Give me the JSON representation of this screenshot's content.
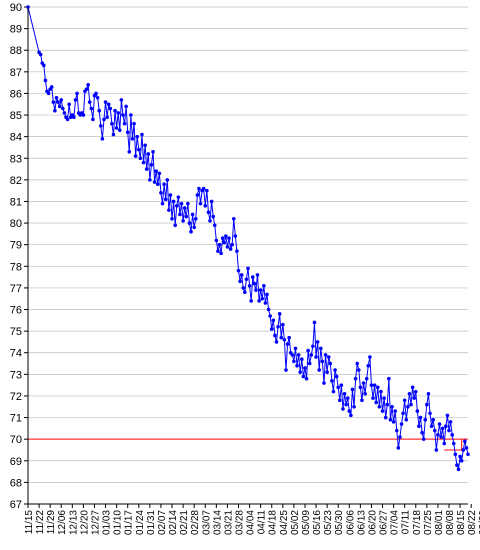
{
  "chart_data": {
    "type": "line",
    "title": "",
    "xlabel": "",
    "ylabel": "",
    "ylim": [
      67,
      90
    ],
    "yticks": [
      67,
      68,
      69,
      70,
      71,
      72,
      73,
      74,
      75,
      76,
      77,
      78,
      79,
      80,
      81,
      82,
      83,
      84,
      85,
      86,
      87,
      88,
      89,
      90
    ],
    "x_start": "11/15",
    "x_end": "09/29",
    "x_tick_labels": [
      "11/15",
      "11/22",
      "11/29",
      "12/06",
      "12/13",
      "12/20",
      "12/27",
      "01/03",
      "01/10",
      "01/17",
      "01/24",
      "01/31",
      "02/07",
      "02/14",
      "02/21",
      "02/28",
      "03/07",
      "03/14",
      "03/21",
      "03/28",
      "04/04",
      "04/11",
      "04/18",
      "04/25",
      "05/02",
      "05/09",
      "05/16",
      "05/23",
      "05/30",
      "06/06",
      "06/13",
      "06/20",
      "06/27",
      "07/04",
      "07/11",
      "07/18",
      "07/25",
      "08/01",
      "08/08",
      "08/15",
      "08/22",
      "08/29",
      "09/05",
      "09/12",
      "09/19",
      "09/26"
    ],
    "grid": true,
    "legend": "none",
    "series_color": "#0000ff",
    "goal_color": "#ff0000",
    "series": [
      {
        "values": [
          [
            0,
            90.0
          ],
          [
            7,
            87.9
          ],
          [
            8,
            87.8
          ],
          [
            9,
            87.4
          ],
          [
            10,
            87.3
          ],
          [
            11,
            86.6
          ],
          [
            12,
            86.1
          ],
          [
            13,
            86.0
          ],
          [
            14,
            86.2
          ],
          [
            15,
            86.3
          ],
          [
            16,
            85.6
          ],
          [
            17,
            85.2
          ],
          [
            18,
            85.8
          ],
          [
            19,
            85.6
          ],
          [
            20,
            85.4
          ],
          [
            21,
            85.7
          ],
          [
            22,
            85.3
          ],
          [
            23,
            85.1
          ],
          [
            24,
            84.9
          ],
          [
            25,
            84.8
          ],
          [
            26,
            85.5
          ],
          [
            27,
            84.9
          ],
          [
            28,
            85.0
          ],
          [
            29,
            84.9
          ],
          [
            30,
            85.7
          ],
          [
            31,
            86.0
          ],
          [
            32,
            85.1
          ],
          [
            33,
            85.0
          ],
          [
            34,
            85.1
          ],
          [
            35,
            85.0
          ],
          [
            36,
            86.1
          ],
          [
            37,
            86.2
          ],
          [
            38,
            86.4
          ],
          [
            39,
            85.6
          ],
          [
            40,
            85.3
          ],
          [
            41,
            84.8
          ],
          [
            42,
            85.9
          ],
          [
            43,
            86.0
          ],
          [
            44,
            85.8
          ],
          [
            45,
            85.2
          ],
          [
            46,
            84.5
          ],
          [
            47,
            83.9
          ],
          [
            48,
            84.8
          ],
          [
            49,
            85.6
          ],
          [
            50,
            84.9
          ],
          [
            51,
            85.5
          ],
          [
            52,
            85.3
          ],
          [
            53,
            84.6
          ],
          [
            54,
            84.1
          ],
          [
            55,
            85.2
          ],
          [
            56,
            84.4
          ],
          [
            57,
            85.1
          ],
          [
            58,
            84.3
          ],
          [
            59,
            85.7
          ],
          [
            60,
            85.0
          ],
          [
            61,
            84.6
          ],
          [
            62,
            85.4
          ],
          [
            63,
            84.2
          ],
          [
            64,
            83.3
          ],
          [
            65,
            85.0
          ],
          [
            66,
            83.9
          ],
          [
            67,
            84.6
          ],
          [
            68,
            83.1
          ],
          [
            69,
            84.0
          ],
          [
            70,
            83.4
          ],
          [
            71,
            83.0
          ],
          [
            72,
            84.1
          ],
          [
            73,
            82.8
          ],
          [
            74,
            83.6
          ],
          [
            75,
            82.5
          ],
          [
            76,
            83.2
          ],
          [
            77,
            82.0
          ],
          [
            78,
            82.7
          ],
          [
            79,
            83.3
          ],
          [
            80,
            81.9
          ],
          [
            81,
            82.4
          ],
          [
            82,
            81.8
          ],
          [
            83,
            82.3
          ],
          [
            84,
            81.4
          ],
          [
            85,
            80.9
          ],
          [
            86,
            81.8
          ],
          [
            87,
            81.1
          ],
          [
            88,
            82.0
          ],
          [
            89,
            80.6
          ],
          [
            90,
            81.3
          ],
          [
            91,
            80.2
          ],
          [
            92,
            81.0
          ],
          [
            93,
            79.9
          ],
          [
            94,
            80.8
          ],
          [
            95,
            81.2
          ],
          [
            96,
            80.4
          ],
          [
            97,
            80.9
          ],
          [
            98,
            80.1
          ],
          [
            99,
            80.7
          ],
          [
            100,
            80.3
          ],
          [
            101,
            80.9
          ],
          [
            102,
            80.0
          ],
          [
            103,
            79.6
          ],
          [
            104,
            80.4
          ],
          [
            105,
            79.8
          ],
          [
            106,
            80.2
          ],
          [
            107,
            81.3
          ],
          [
            108,
            81.6
          ],
          [
            109,
            80.9
          ],
          [
            110,
            81.5
          ],
          [
            111,
            81.6
          ],
          [
            112,
            80.8
          ],
          [
            113,
            81.5
          ],
          [
            114,
            80.5
          ],
          [
            115,
            80.1
          ],
          [
            116,
            81.0
          ],
          [
            117,
            80.3
          ],
          [
            118,
            79.9
          ],
          [
            119,
            79.2
          ],
          [
            120,
            78.7
          ],
          [
            121,
            79.0
          ],
          [
            122,
            78.6
          ],
          [
            123,
            79.3
          ],
          [
            124,
            79.1
          ],
          [
            125,
            79.4
          ],
          [
            126,
            78.9
          ],
          [
            127,
            79.3
          ],
          [
            128,
            78.8
          ],
          [
            129,
            79.0
          ],
          [
            130,
            80.2
          ],
          [
            131,
            79.4
          ],
          [
            132,
            78.7
          ],
          [
            133,
            77.8
          ],
          [
            134,
            77.3
          ],
          [
            135,
            77.6
          ],
          [
            136,
            77.0
          ],
          [
            137,
            76.8
          ],
          [
            138,
            77.4
          ],
          [
            139,
            77.9
          ],
          [
            140,
            77.1
          ],
          [
            141,
            76.4
          ],
          [
            142,
            77.5
          ],
          [
            143,
            77.2
          ],
          [
            144,
            76.9
          ],
          [
            145,
            77.6
          ],
          [
            146,
            76.4
          ],
          [
            147,
            76.9
          ],
          [
            148,
            76.5
          ],
          [
            149,
            77.1
          ],
          [
            150,
            76.3
          ],
          [
            151,
            76.7
          ],
          [
            152,
            76.0
          ],
          [
            153,
            75.7
          ],
          [
            154,
            75.1
          ],
          [
            155,
            75.5
          ],
          [
            156,
            74.8
          ],
          [
            157,
            74.5
          ],
          [
            158,
            75.2
          ],
          [
            159,
            75.8
          ],
          [
            160,
            74.7
          ],
          [
            161,
            75.3
          ],
          [
            162,
            74.6
          ],
          [
            163,
            73.2
          ],
          [
            164,
            74.4
          ],
          [
            165,
            74.7
          ],
          [
            166,
            74.0
          ],
          [
            167,
            73.9
          ],
          [
            168,
            73.6
          ],
          [
            169,
            74.2
          ],
          [
            170,
            73.4
          ],
          [
            171,
            73.9
          ],
          [
            172,
            73.1
          ],
          [
            173,
            73.7
          ],
          [
            174,
            72.9
          ],
          [
            175,
            73.3
          ],
          [
            176,
            72.8
          ],
          [
            177,
            74.1
          ],
          [
            178,
            73.5
          ],
          [
            179,
            73.9
          ],
          [
            180,
            74.3
          ],
          [
            181,
            75.4
          ],
          [
            182,
            73.8
          ],
          [
            183,
            74.5
          ],
          [
            184,
            73.2
          ],
          [
            185,
            74.2
          ],
          [
            186,
            73.6
          ],
          [
            187,
            72.6
          ],
          [
            188,
            73.9
          ],
          [
            189,
            73.1
          ],
          [
            190,
            73.8
          ],
          [
            191,
            73.5
          ],
          [
            192,
            72.7
          ],
          [
            193,
            72.2
          ],
          [
            194,
            73.2
          ],
          [
            195,
            72.9
          ],
          [
            196,
            72.4
          ],
          [
            197,
            71.8
          ],
          [
            198,
            72.5
          ],
          [
            199,
            71.4
          ],
          [
            200,
            72.1
          ],
          [
            201,
            71.6
          ],
          [
            202,
            71.9
          ],
          [
            203,
            71.3
          ],
          [
            204,
            71.1
          ],
          [
            205,
            72.3
          ],
          [
            206,
            71.5
          ],
          [
            207,
            72.8
          ],
          [
            208,
            73.5
          ],
          [
            209,
            73.2
          ],
          [
            210,
            72.4
          ],
          [
            211,
            71.8
          ],
          [
            212,
            72.6
          ],
          [
            213,
            72.1
          ],
          [
            214,
            72.8
          ],
          [
            215,
            73.4
          ],
          [
            216,
            73.8
          ],
          [
            217,
            72.5
          ],
          [
            218,
            71.9
          ],
          [
            219,
            72.5
          ],
          [
            220,
            71.7
          ],
          [
            221,
            72.4
          ],
          [
            222,
            71.5
          ],
          [
            223,
            72.2
          ],
          [
            224,
            71.3
          ],
          [
            225,
            71.9
          ],
          [
            226,
            71.0
          ],
          [
            227,
            71.6
          ],
          [
            228,
            72.8
          ],
          [
            229,
            70.9
          ],
          [
            230,
            71.5
          ],
          [
            231,
            70.8
          ],
          [
            232,
            71.3
          ],
          [
            233,
            70.4
          ],
          [
            234,
            69.6
          ],
          [
            235,
            70.1
          ],
          [
            236,
            70.7
          ],
          [
            237,
            71.2
          ],
          [
            238,
            71.8
          ],
          [
            239,
            70.9
          ],
          [
            240,
            71.5
          ],
          [
            241,
            72.1
          ],
          [
            242,
            71.6
          ],
          [
            243,
            72.4
          ],
          [
            244,
            71.9
          ],
          [
            245,
            72.2
          ],
          [
            246,
            71.3
          ],
          [
            247,
            70.6
          ],
          [
            248,
            71.0
          ],
          [
            249,
            70.3
          ],
          [
            250,
            70.0
          ],
          [
            251,
            70.9
          ],
          [
            252,
            71.6
          ],
          [
            253,
            72.1
          ],
          [
            254,
            71.2
          ],
          [
            255,
            70.6
          ],
          [
            256,
            70.9
          ],
          [
            257,
            70.4
          ],
          [
            258,
            69.5
          ],
          [
            259,
            70.2
          ],
          [
            260,
            70.7
          ],
          [
            261,
            70.1
          ],
          [
            262,
            70.5
          ],
          [
            263,
            69.8
          ],
          [
            264,
            70.6
          ],
          [
            265,
            71.1
          ],
          [
            266,
            70.4
          ],
          [
            267,
            70.8
          ],
          [
            268,
            70.2
          ],
          [
            269,
            69.8
          ],
          [
            270,
            69.3
          ],
          [
            271,
            68.8
          ],
          [
            272,
            68.6
          ],
          [
            273,
            69.2
          ],
          [
            274,
            69.0
          ],
          [
            275,
            69.5
          ],
          [
            276,
            69.9
          ],
          [
            277,
            69.6
          ],
          [
            278,
            69.3
          ]
        ]
      },
      {
        "values": [
          [
            0,
            70
          ],
          [
            278,
            70
          ]
        ]
      },
      {
        "values": [
          [
            263,
            69.5
          ],
          [
            274,
            69.5
          ],
          [
            274,
            70.0
          ]
        ]
      }
    ]
  }
}
